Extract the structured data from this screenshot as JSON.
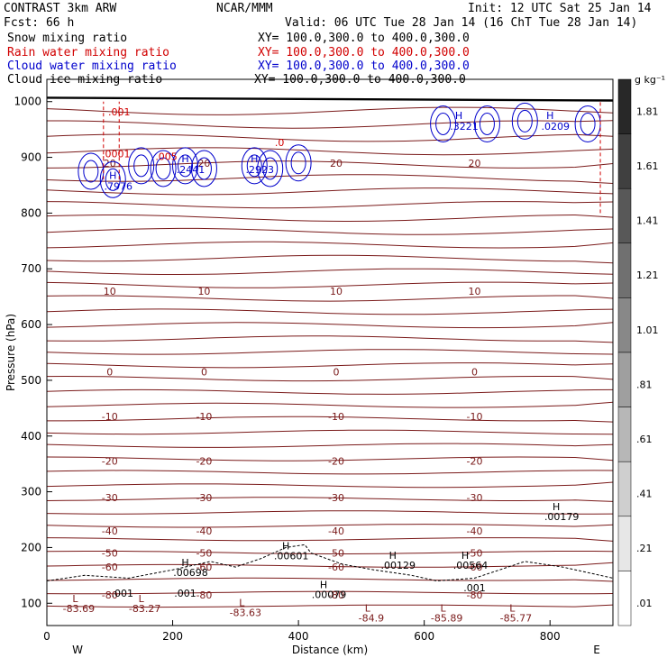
{
  "header": {
    "left1": "CONTRAST  3km ARW",
    "center1": "NCAR/MMM",
    "right1": "Init: 12 UTC Sat 25 Jan 14",
    "left2": "Fcst:   66 h",
    "right2": "Valid: 06 UTC Tue 28 Jan 14 (16 ChT Tue 28 Jan 14)"
  },
  "legend": [
    {
      "name": "Snow mixing ratio",
      "xy": "XY= 100.0,300.0 to 400.0,300.0",
      "color": "#000000"
    },
    {
      "name": "Rain water mixing ratio",
      "xy": "XY= 100.0,300.0 to 400.0,300.0",
      "color": "#d10000"
    },
    {
      "name": "Cloud water mixing ratio",
      "xy": "XY= 100.0,300.0 to 400.0,300.0",
      "color": "#0000cc"
    },
    {
      "name": "Cloud ice mixing ratio",
      "xy": "XY= 100.0,300.0 to 400.0,300.0",
      "color": "#000000"
    }
  ],
  "chart_data": {
    "type": "contour",
    "xlabel": "Distance (km)",
    "ylabel": "Pressure (hPa)",
    "xlim": [
      0,
      900
    ],
    "ylim": [
      1040,
      60
    ],
    "x_ticks": [
      "0",
      "200",
      "400",
      "600",
      "800"
    ],
    "x_tick_values": [
      0,
      200,
      400,
      600,
      800
    ],
    "y_ticks": [
      "100",
      "200",
      "300",
      "400",
      "500",
      "600",
      "700",
      "800",
      "900",
      "1000"
    ],
    "y_tick_values": [
      100,
      200,
      300,
      400,
      500,
      600,
      700,
      800,
      900,
      1000
    ],
    "end_left": "W",
    "end_right": "E",
    "temperature_contours": [
      {
        "label": "-80",
        "p": 115
      },
      {
        "label": "-60",
        "p": 165
      },
      {
        "label": "-50",
        "p": 190
      },
      {
        "label": "-40",
        "p": 230
      },
      {
        "label": "-30",
        "p": 290
      },
      {
        "label": "-20",
        "p": 355
      },
      {
        "label": "-10",
        "p": 435
      },
      {
        "label": "0",
        "p": 515
      },
      {
        "label": "10",
        "p": 660
      },
      {
        "label": "20",
        "p": 890
      }
    ],
    "extrema_low": [
      {
        "label": "L",
        "value": "-83.69",
        "x": 45,
        "p": 102
      },
      {
        "label": "L",
        "value": "-83.27",
        "x": 150,
        "p": 102
      },
      {
        "label": "L",
        "value": "-83.63",
        "x": 310,
        "p": 95
      },
      {
        "label": "L",
        "value": "-84.9",
        "x": 510,
        "p": 85
      },
      {
        "label": "L",
        "value": "-85.89",
        "x": 630,
        "p": 85
      },
      {
        "label": "L",
        "value": "-85.77",
        "x": 740,
        "p": 85
      }
    ],
    "extrema_high": [
      {
        "label": "H",
        "value": ".00079",
        "x": 440,
        "p": 127
      },
      {
        "label": "H",
        "value": ".00698",
        "x": 220,
        "p": 167
      },
      {
        "label": "H",
        "value": ".00601",
        "x": 380,
        "p": 197
      },
      {
        "label": "H",
        "value": ".00129",
        "x": 550,
        "p": 180
      },
      {
        "label": "H",
        "value": ".00564",
        "x": 665,
        "p": 180
      },
      {
        "label": "H",
        "value": ".00179",
        "x": 810,
        "p": 267
      }
    ],
    "cloud_ice_labels": [
      ".001",
      ".001",
      ".001"
    ],
    "cloud_water_maxima": [
      {
        "label": "H",
        "value": ".7976",
        "x": 105,
        "p": 855
      },
      {
        "label": "H",
        "value": ".2441",
        "x": 220,
        "p": 885
      },
      {
        "label": "H",
        "value": ".2923",
        "x": 330,
        "p": 885
      },
      {
        "label": "H",
        "value": ".3221",
        "x": 655,
        "p": 962
      },
      {
        "label": "H",
        "value": ".0209",
        "x": 800,
        "p": 962
      }
    ],
    "rain_labels": [
      ".0001",
      ".005",
      ".0",
      ".001"
    ],
    "colorbar": {
      "unit": "g kg⁻¹",
      "labels": [
        "1.81",
        "1.61",
        "1.41",
        "1.21",
        "1.01",
        ".81",
        ".61",
        ".41",
        ".21",
        ".01"
      ]
    }
  }
}
